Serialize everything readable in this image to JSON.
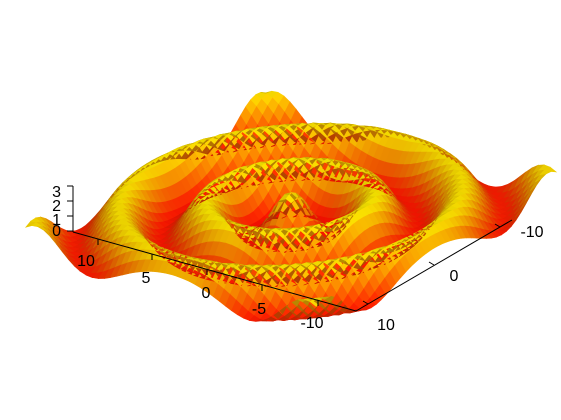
{
  "chart_data": {
    "type": "surface",
    "title": "",
    "xlabel": "",
    "ylabel": "",
    "zlabel": "",
    "colormap": "autumn",
    "colormap_colors": [
      "#ff0000",
      "#ffff00"
    ],
    "x_range": [
      -12,
      12
    ],
    "y_range": [
      -12,
      12
    ],
    "z_range": [
      0,
      3
    ],
    "x_ticks": [
      10,
      0
    ],
    "x_tick_labels": [
      "10",
      "0"
    ],
    "z_ticks": [
      0,
      1,
      2,
      3
    ],
    "z_tick_labels": [
      "0",
      "1",
      "2",
      "3"
    ],
    "y_ticks": [
      10,
      5,
      0,
      -5,
      -10
    ],
    "y_tick_labels": [
      "10",
      "5",
      "0",
      "-5",
      "-10"
    ],
    "extra_tick_labels": [
      "-10"
    ],
    "surface_description": "ring ripple surface, z approximately 1.5 + 1.4*cos(1.1*r), square domain"
  }
}
